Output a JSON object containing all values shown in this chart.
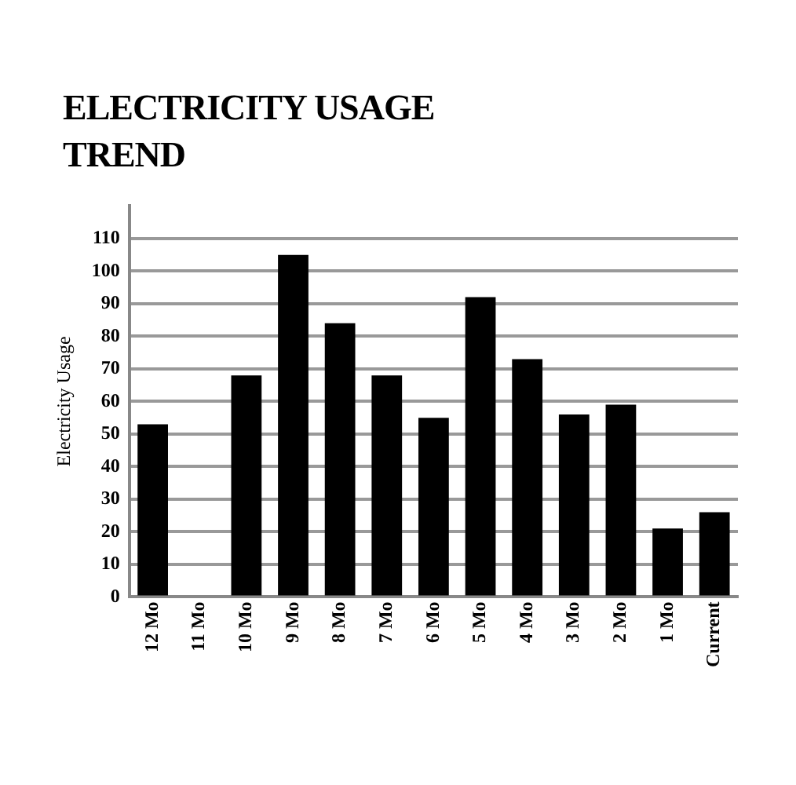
{
  "chart_data": {
    "type": "bar",
    "title": "ELECTRICITY USAGE TREND",
    "ylabel": "Electricity Usage",
    "categories": [
      "12 Mo",
      "11 Mo",
      "10 Mo",
      "9 Mo",
      "8 Mo",
      "7 Mo",
      "6 Mo",
      "5 Mo",
      "4 Mo",
      "3 Mo",
      "2 Mo",
      "1 Mo",
      "Current"
    ],
    "values": [
      53,
      0,
      68,
      105,
      84,
      68,
      55,
      92,
      73,
      56,
      59,
      21,
      26
    ],
    "color": "#000000",
    "ylim": [
      0,
      120
    ],
    "yticks": [
      0,
      10,
      20,
      30,
      40,
      50,
      60,
      70,
      80,
      90,
      100,
      110
    ],
    "grid": "y",
    "legend": false
  }
}
